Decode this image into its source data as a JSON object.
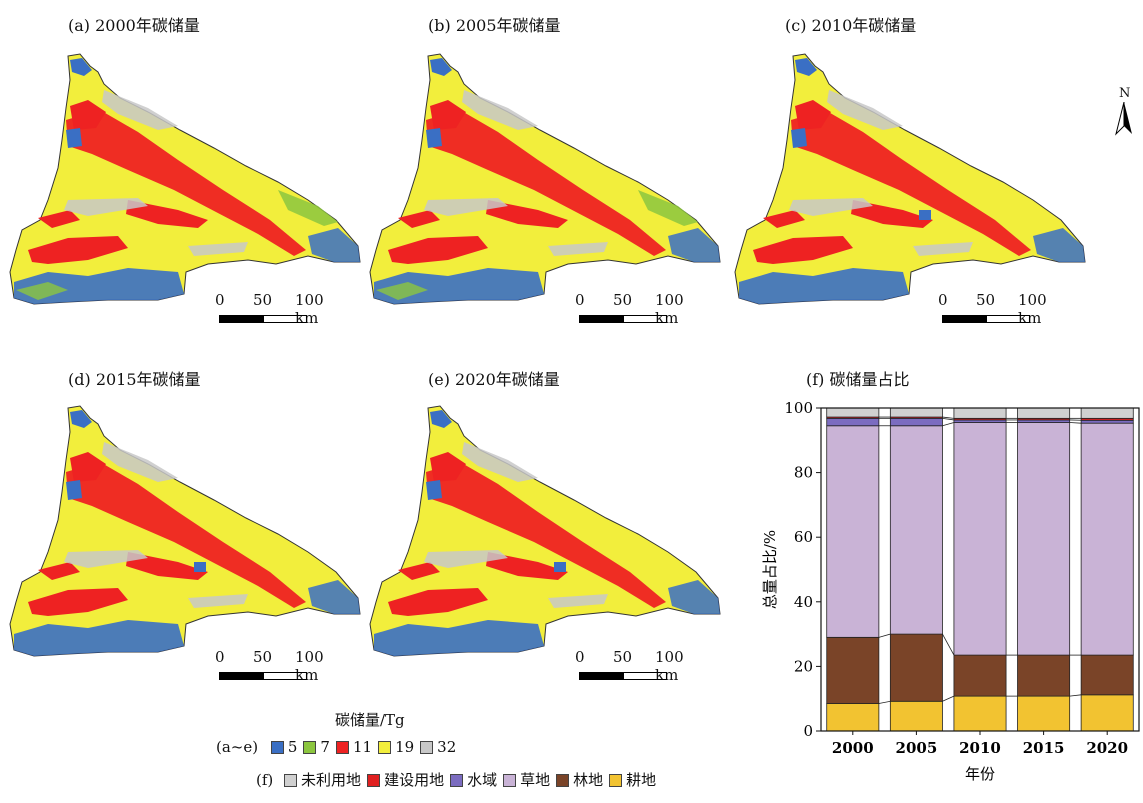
{
  "panels": {
    "a": {
      "title": "(a) 2000年碳储量"
    },
    "b": {
      "title": "(b) 2005年碳储量"
    },
    "c": {
      "title": "(c) 2010年碳储量"
    },
    "d": {
      "title": "(d) 2015年碳储量"
    },
    "e": {
      "title": "(e) 2020年碳储量"
    },
    "f": {
      "title": "(f) 碳储量占比"
    }
  },
  "scalebar": {
    "zero": "0",
    "mid": "50",
    "end": "100 km"
  },
  "north": {
    "label": "N"
  },
  "legend_maps": {
    "title": "碳储量/Tg",
    "prefix": "(a~e)",
    "items": [
      {
        "label": "5",
        "color": "#3a6fc4"
      },
      {
        "label": "7",
        "color": "#8cc63f"
      },
      {
        "label": "11",
        "color": "#ee2222"
      },
      {
        "label": "19",
        "color": "#f2ee3c"
      },
      {
        "label": "32",
        "color": "#c8c8c8"
      }
    ]
  },
  "legend_chart": {
    "prefix": "(f)",
    "items": [
      {
        "label": "未利用地",
        "color": "#d0d0d0"
      },
      {
        "label": "建设用地",
        "color": "#e02020"
      },
      {
        "label": "水域",
        "color": "#7b6cc0"
      },
      {
        "label": "草地",
        "color": "#c9b3d6"
      },
      {
        "label": "林地",
        "color": "#7a4428"
      },
      {
        "label": "耕地",
        "color": "#f2c331"
      }
    ]
  },
  "colors": {
    "map_base": "#f2ee3c",
    "map_red": "#ee2222",
    "map_blue": "#3a6fc4",
    "map_gray": "#c8c8c8",
    "map_green": "#8cc63f"
  },
  "chart_data": {
    "type": "bar",
    "stacked": true,
    "xlabel": "年份",
    "ylabel": "总量占比/%",
    "ylim": [
      0,
      100
    ],
    "yticks": [
      0,
      20,
      40,
      60,
      80,
      100
    ],
    "categories": [
      "2000",
      "2005",
      "2010",
      "2015",
      "2020"
    ],
    "series": [
      {
        "name": "耕地",
        "color": "#f2c331",
        "values": [
          8.5,
          9.2,
          10.8,
          10.8,
          11.2
        ]
      },
      {
        "name": "林地",
        "color": "#7a4428",
        "values": [
          20.5,
          20.8,
          12.7,
          12.7,
          12.3
        ]
      },
      {
        "name": "草地",
        "color": "#c9b3d6",
        "values": [
          65.5,
          64.5,
          72.0,
          72.0,
          71.8
        ]
      },
      {
        "name": "水域",
        "color": "#7b6cc0",
        "values": [
          2.3,
          2.3,
          0.8,
          0.8,
          0.9
        ]
      },
      {
        "name": "建设用地",
        "color": "#e02020",
        "values": [
          0.4,
          0.4,
          0.5,
          0.5,
          0.6
        ]
      },
      {
        "name": "未利用地",
        "color": "#d0d0d0",
        "values": [
          2.8,
          2.8,
          3.2,
          3.2,
          3.2
        ]
      }
    ],
    "grid": false,
    "legend_position": "bottom"
  }
}
